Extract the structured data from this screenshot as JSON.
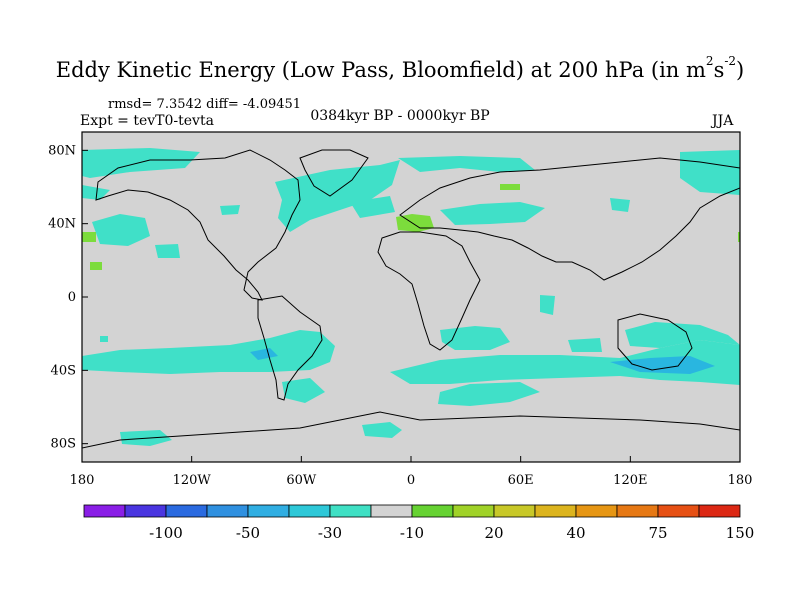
{
  "title": {
    "main": "Eddy Kinetic Energy (Low Pass, Bloomfield) at 200 hPa (in m",
    "sup1": "2",
    "mid": "s",
    "sup2": "-2",
    "end": ")"
  },
  "stats": "rmsd= 7.3542  diff= -4.09451",
  "experiment": "Expt = tevT0-tevta",
  "period": "0384kyr BP - 0000kyr BP",
  "season": "JJA",
  "colors": {
    "land_ocean": "#d3d3d3",
    "cyan": "#40e0c8",
    "blue": "#29b6e0",
    "green": "#7cdc3c",
    "coast": "#000000"
  },
  "map": {
    "projection": "cylindrical equidistant",
    "lat_range": [
      -90,
      90
    ],
    "lon_range": [
      -180,
      180
    ],
    "y_ticks": [
      {
        "lat": 80,
        "label": "80N"
      },
      {
        "lat": 40,
        "label": "40N"
      },
      {
        "lat": 0,
        "label": "0"
      },
      {
        "lat": -40,
        "label": "40S"
      },
      {
        "lat": -80,
        "label": "80S"
      }
    ],
    "x_ticks": [
      {
        "lon": -180,
        "label": "180"
      },
      {
        "lon": -120,
        "label": "120W"
      },
      {
        "lon": -60,
        "label": "60W"
      },
      {
        "lon": 0,
        "label": "0"
      },
      {
        "lon": 60,
        "label": "60E"
      },
      {
        "lon": 120,
        "label": "120E"
      },
      {
        "lon": 180,
        "label": "180"
      }
    ]
  },
  "colorbar": {
    "colors": [
      "#8a1ee6",
      "#4a35e0",
      "#2a6ae0",
      "#2f90e0",
      "#30aee2",
      "#2ec8d8",
      "#3fe0c4",
      "#d3d3d3",
      "#66d232",
      "#a0d228",
      "#c8c828",
      "#dcb41e",
      "#e69614",
      "#e67814",
      "#e65014",
      "#dc2814"
    ],
    "labels": [
      {
        "boundary": 2,
        "text": "-100"
      },
      {
        "boundary": 4,
        "text": "-50"
      },
      {
        "boundary": 6,
        "text": "-30"
      },
      {
        "boundary": 8,
        "text": "-10"
      },
      {
        "boundary": 10,
        "text": "20"
      },
      {
        "boundary": 12,
        "text": "40"
      },
      {
        "boundary": 14,
        "text": "75"
      },
      {
        "boundary": 16,
        "text": "150"
      }
    ]
  }
}
